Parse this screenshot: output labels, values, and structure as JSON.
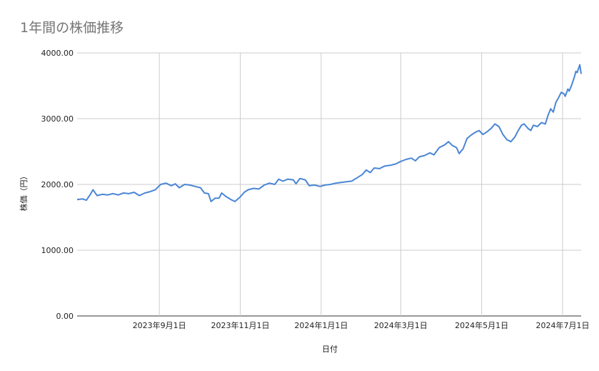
{
  "chart_data": {
    "type": "line",
    "title": "1年間の株価推移",
    "xlabel": "日付",
    "ylabel": "株価（円）",
    "ylim": [
      0,
      4000
    ],
    "yticks": [
      "0.00",
      "1000.00",
      "2000.00",
      "3000.00",
      "4000.00"
    ],
    "xlim": [
      "2023-07-01",
      "2024-07-15"
    ],
    "xticks": [
      {
        "date": "2023-09-01",
        "label": "2023年9月1日"
      },
      {
        "date": "2023-11-01",
        "label": "2023年11月1日"
      },
      {
        "date": "2024-01-01",
        "label": "2024年1月1日"
      },
      {
        "date": "2024-03-01",
        "label": "2024年3月1日"
      },
      {
        "date": "2024-05-01",
        "label": "2024年5月1日"
      },
      {
        "date": "2024-07-01",
        "label": "2024年7月1日"
      }
    ],
    "grid": true,
    "legend": "none",
    "series": [
      {
        "color": "#4a86d6",
        "points": [
          [
            "2023-07-01",
            1770
          ],
          [
            "2023-07-05",
            1780
          ],
          [
            "2023-07-08",
            1760
          ],
          [
            "2023-07-11",
            1850
          ],
          [
            "2023-07-13",
            1920
          ],
          [
            "2023-07-16",
            1830
          ],
          [
            "2023-07-20",
            1850
          ],
          [
            "2023-07-24",
            1840
          ],
          [
            "2023-07-28",
            1860
          ],
          [
            "2023-08-01",
            1840
          ],
          [
            "2023-08-05",
            1870
          ],
          [
            "2023-08-09",
            1860
          ],
          [
            "2023-08-13",
            1880
          ],
          [
            "2023-08-17",
            1830
          ],
          [
            "2023-08-21",
            1870
          ],
          [
            "2023-08-25",
            1890
          ],
          [
            "2023-08-29",
            1920
          ],
          [
            "2023-09-02",
            2000
          ],
          [
            "2023-09-06",
            2020
          ],
          [
            "2023-09-10",
            1980
          ],
          [
            "2023-09-13",
            2010
          ],
          [
            "2023-09-16",
            1950
          ],
          [
            "2023-09-20",
            2000
          ],
          [
            "2023-09-24",
            1990
          ],
          [
            "2023-09-28",
            1970
          ],
          [
            "2023-10-02",
            1950
          ],
          [
            "2023-10-05",
            1870
          ],
          [
            "2023-10-08",
            1860
          ],
          [
            "2023-10-10",
            1740
          ],
          [
            "2023-10-13",
            1790
          ],
          [
            "2023-10-16",
            1790
          ],
          [
            "2023-10-18",
            1870
          ],
          [
            "2023-10-21",
            1820
          ],
          [
            "2023-10-25",
            1770
          ],
          [
            "2023-10-28",
            1740
          ],
          [
            "2023-11-01",
            1810
          ],
          [
            "2023-11-04",
            1880
          ],
          [
            "2023-11-07",
            1920
          ],
          [
            "2023-11-11",
            1940
          ],
          [
            "2023-11-15",
            1930
          ],
          [
            "2023-11-19",
            1990
          ],
          [
            "2023-11-23",
            2020
          ],
          [
            "2023-11-27",
            2000
          ],
          [
            "2023-11-30",
            2080
          ],
          [
            "2023-12-03",
            2050
          ],
          [
            "2023-12-07",
            2080
          ],
          [
            "2023-12-11",
            2070
          ],
          [
            "2023-12-13",
            2010
          ],
          [
            "2023-12-16",
            2090
          ],
          [
            "2023-12-20",
            2070
          ],
          [
            "2023-12-23",
            1980
          ],
          [
            "2023-12-27",
            1990
          ],
          [
            "2023-12-31",
            1970
          ],
          [
            "2024-01-04",
            1990
          ],
          [
            "2024-01-08",
            2000
          ],
          [
            "2024-01-12",
            2020
          ],
          [
            "2024-01-16",
            2030
          ],
          [
            "2024-01-20",
            2040
          ],
          [
            "2024-01-24",
            2050
          ],
          [
            "2024-01-28",
            2100
          ],
          [
            "2024-02-01",
            2150
          ],
          [
            "2024-02-04",
            2220
          ],
          [
            "2024-02-07",
            2180
          ],
          [
            "2024-02-10",
            2250
          ],
          [
            "2024-02-14",
            2240
          ],
          [
            "2024-02-18",
            2280
          ],
          [
            "2024-02-22",
            2290
          ],
          [
            "2024-02-26",
            2310
          ],
          [
            "2024-03-01",
            2350
          ],
          [
            "2024-03-05",
            2380
          ],
          [
            "2024-03-09",
            2400
          ],
          [
            "2024-03-12",
            2360
          ],
          [
            "2024-03-15",
            2420
          ],
          [
            "2024-03-19",
            2440
          ],
          [
            "2024-03-23",
            2480
          ],
          [
            "2024-03-26",
            2450
          ],
          [
            "2024-03-30",
            2560
          ],
          [
            "2024-04-03",
            2600
          ],
          [
            "2024-04-06",
            2650
          ],
          [
            "2024-04-09",
            2590
          ],
          [
            "2024-04-12",
            2560
          ],
          [
            "2024-04-14",
            2470
          ],
          [
            "2024-04-17",
            2540
          ],
          [
            "2024-04-20",
            2700
          ],
          [
            "2024-04-23",
            2750
          ],
          [
            "2024-04-26",
            2790
          ],
          [
            "2024-04-29",
            2820
          ],
          [
            "2024-05-02",
            2760
          ],
          [
            "2024-05-05",
            2800
          ],
          [
            "2024-05-08",
            2850
          ],
          [
            "2024-05-11",
            2920
          ],
          [
            "2024-05-14",
            2880
          ],
          [
            "2024-05-17",
            2760
          ],
          [
            "2024-05-20",
            2680
          ],
          [
            "2024-05-23",
            2650
          ],
          [
            "2024-05-26",
            2720
          ],
          [
            "2024-05-28",
            2800
          ],
          [
            "2024-05-31",
            2900
          ],
          [
            "2024-06-02",
            2920
          ],
          [
            "2024-06-05",
            2850
          ],
          [
            "2024-06-07",
            2820
          ],
          [
            "2024-06-09",
            2900
          ],
          [
            "2024-06-12",
            2880
          ],
          [
            "2024-06-15",
            2940
          ],
          [
            "2024-06-18",
            2920
          ],
          [
            "2024-06-20",
            3050
          ],
          [
            "2024-06-22",
            3150
          ],
          [
            "2024-06-24",
            3100
          ],
          [
            "2024-06-26",
            3250
          ],
          [
            "2024-06-28",
            3320
          ],
          [
            "2024-06-30",
            3400
          ],
          [
            "2024-07-02",
            3380
          ],
          [
            "2024-07-03",
            3340
          ],
          [
            "2024-07-05",
            3450
          ],
          [
            "2024-07-06",
            3420
          ],
          [
            "2024-07-08",
            3520
          ],
          [
            "2024-07-09",
            3580
          ],
          [
            "2024-07-10",
            3640
          ],
          [
            "2024-07-11",
            3720
          ],
          [
            "2024-07-12",
            3700
          ],
          [
            "2024-07-13",
            3760
          ],
          [
            "2024-07-14",
            3820
          ],
          [
            "2024-07-15",
            3680
          ]
        ]
      }
    ]
  }
}
